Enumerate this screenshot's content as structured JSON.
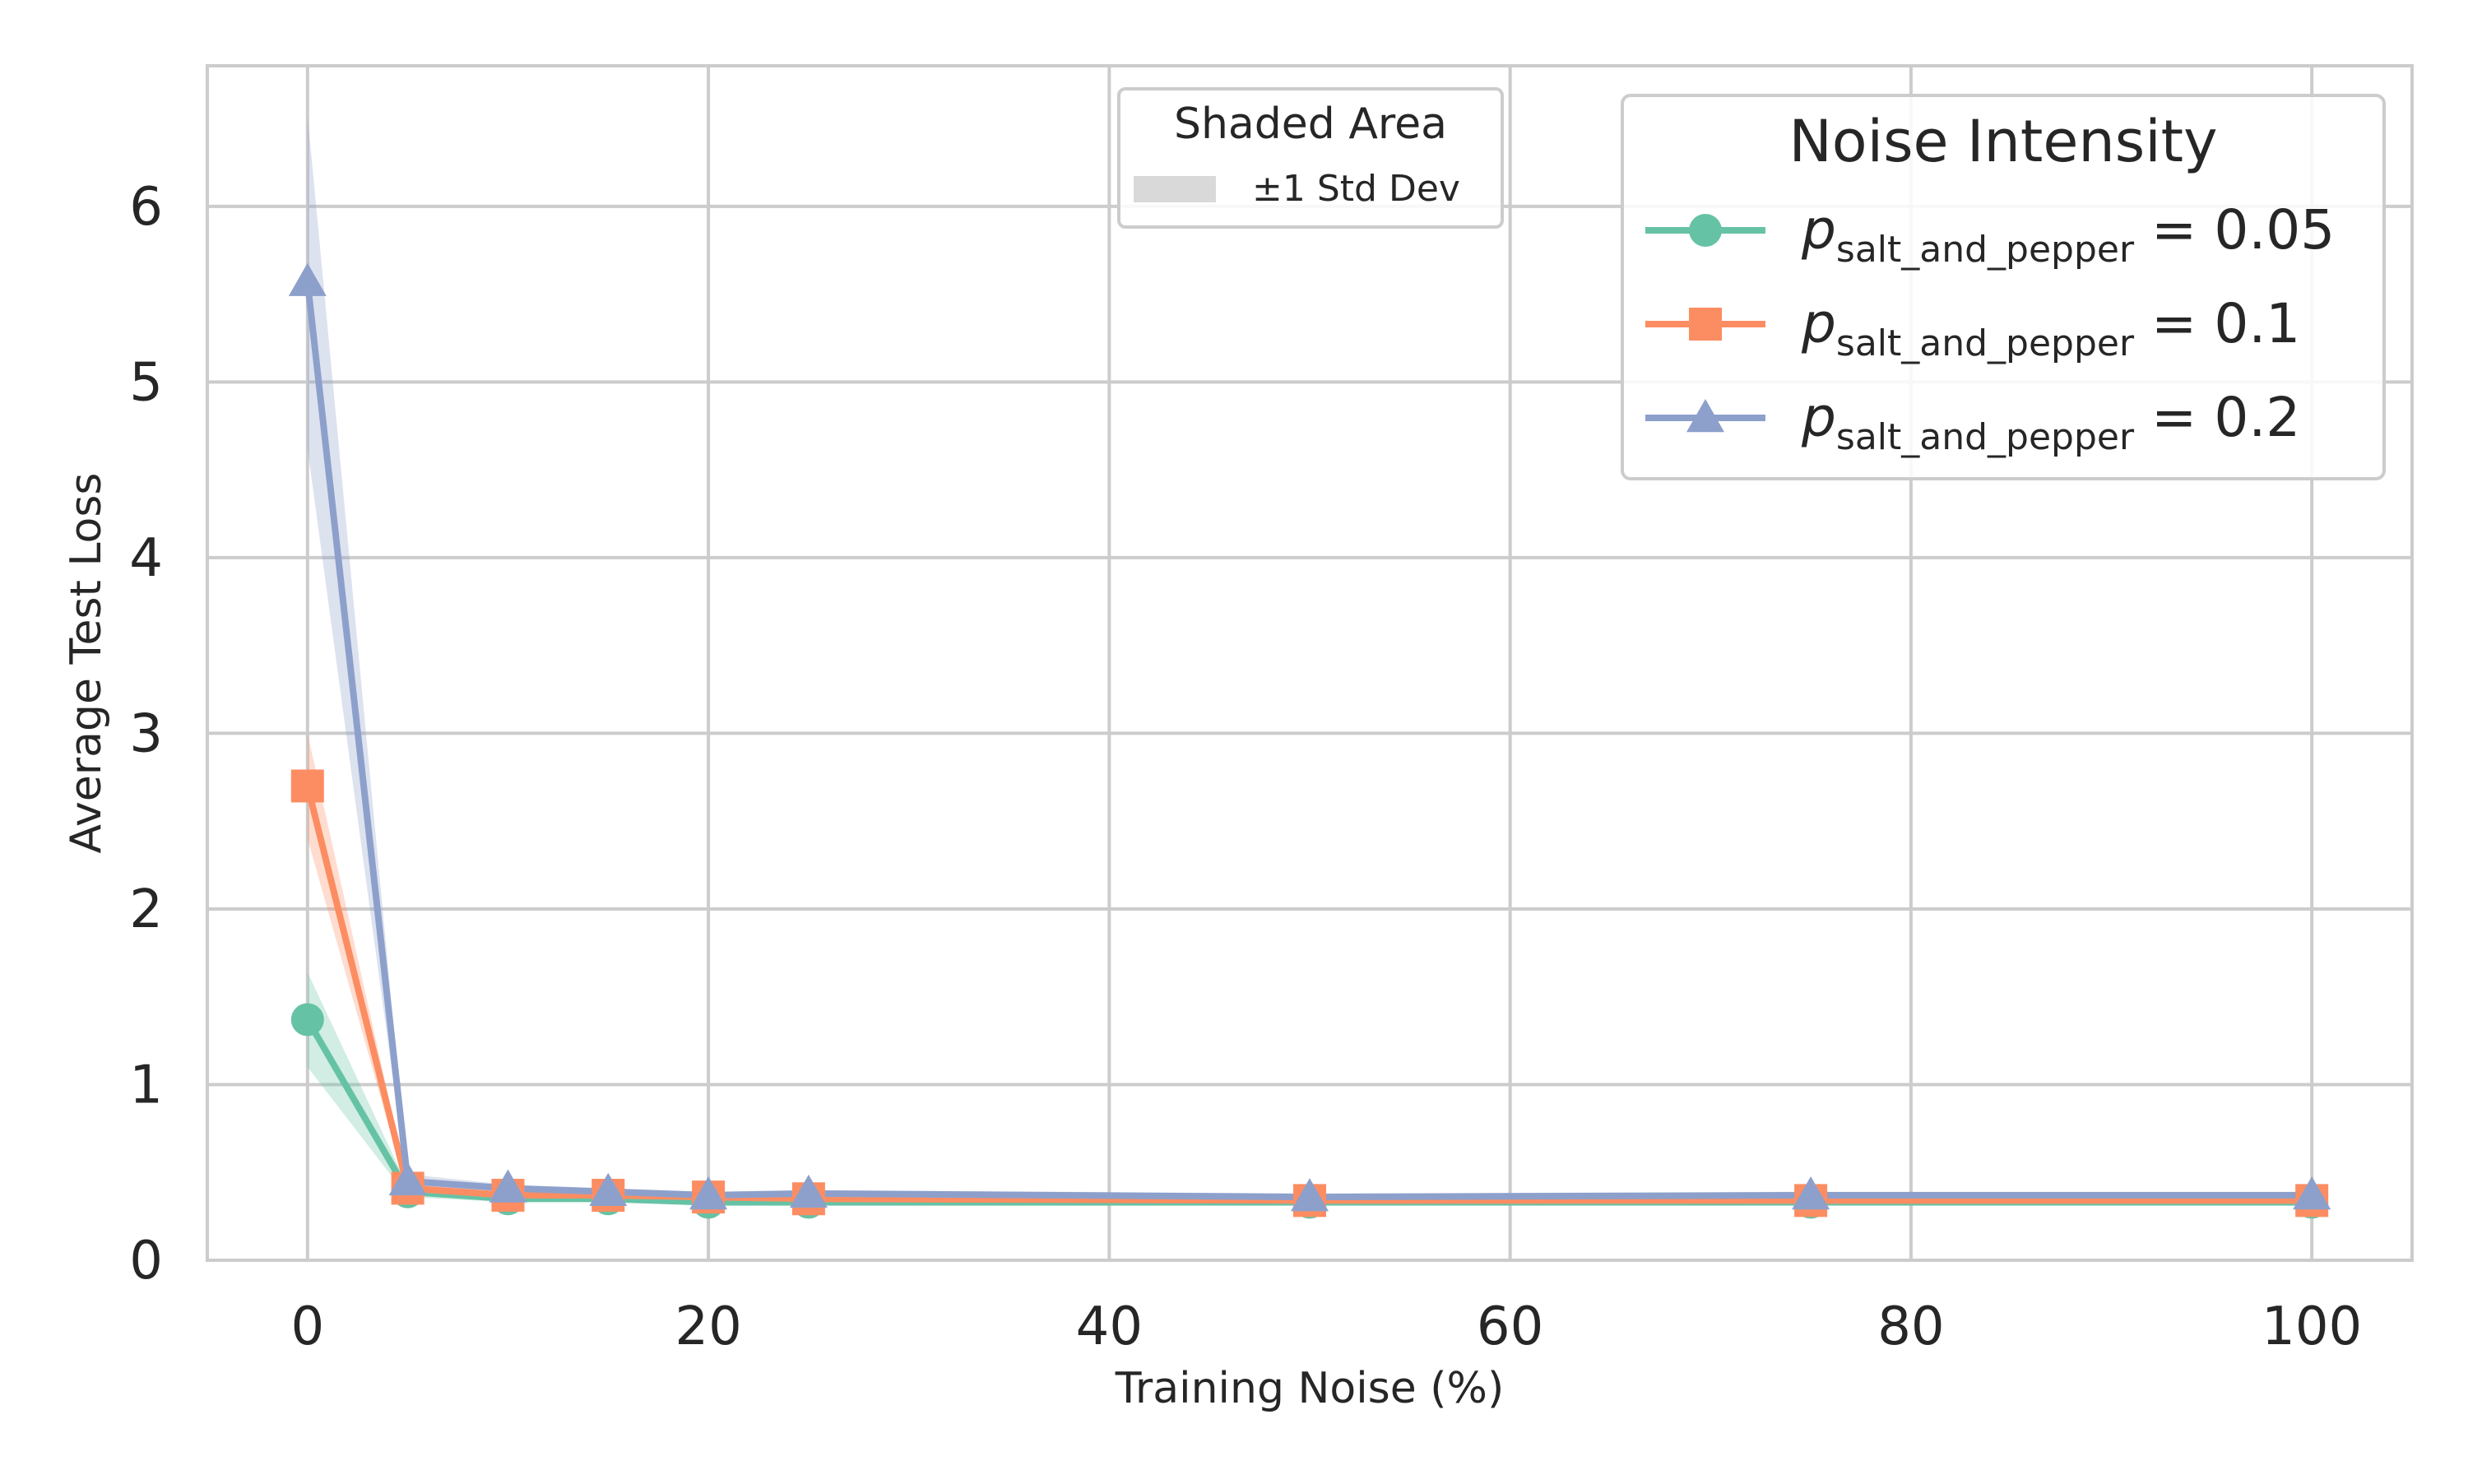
{
  "chart_data": {
    "type": "line",
    "title": "",
    "xlabel": "Training Noise (%)",
    "ylabel": "Average Test Loss",
    "xlim": [
      -5,
      105
    ],
    "ylim": [
      0,
      6.8
    ],
    "xticks": [
      0,
      20,
      40,
      60,
      80,
      100
    ],
    "yticks": [
      0,
      1,
      2,
      3,
      4,
      5,
      6
    ],
    "grid": true,
    "x": [
      0,
      5,
      10,
      15,
      20,
      25,
      50,
      75,
      100
    ],
    "series": [
      {
        "name_main": "p",
        "name_sub": "salt_and_pepper",
        "name_value": " = 0.05",
        "color": "#66c2a5",
        "marker": "circle",
        "values": [
          1.37,
          0.39,
          0.35,
          0.35,
          0.33,
          0.33,
          0.33,
          0.33,
          0.33
        ],
        "std": [
          0.27,
          0.03,
          0.02,
          0.02,
          0.02,
          0.02,
          0.02,
          0.02,
          0.02
        ]
      },
      {
        "name_main": "p",
        "name_sub": "salt_and_pepper",
        "name_value": " = 0.1",
        "color": "#fc8d62",
        "marker": "square",
        "values": [
          2.7,
          0.41,
          0.37,
          0.37,
          0.36,
          0.35,
          0.34,
          0.34,
          0.34
        ],
        "std": [
          0.3,
          0.03,
          0.02,
          0.02,
          0.02,
          0.02,
          0.02,
          0.02,
          0.02
        ]
      },
      {
        "name_main": "p",
        "name_sub": "salt_and_pepper",
        "name_value": " = 0.2",
        "color": "#8da0cb",
        "marker": "triangle",
        "values": [
          5.57,
          0.45,
          0.41,
          0.39,
          0.37,
          0.38,
          0.36,
          0.37,
          0.37
        ],
        "std": [
          0.95,
          0.04,
          0.02,
          0.02,
          0.02,
          0.02,
          0.02,
          0.02,
          0.02
        ]
      }
    ],
    "legend": {
      "title": "Noise Intensity",
      "placement": "top-right"
    },
    "shade_legend": {
      "title": "Shaded Area",
      "label": "±1 Std Dev",
      "color": "#d9d9d9",
      "placement": "top-center"
    }
  }
}
